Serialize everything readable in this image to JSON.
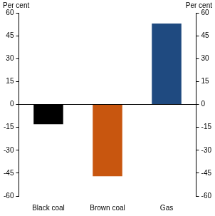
{
  "chart_data": {
    "type": "bar",
    "categories": [
      "Black coal",
      "Brown coal",
      "Gas"
    ],
    "values": [
      -13,
      -47,
      53
    ],
    "colors": [
      "#000000",
      "#c8560f",
      "#1f4a80"
    ],
    "ylim": [
      -60,
      60
    ],
    "yticks": [
      -60,
      -45,
      -30,
      -15,
      0,
      15,
      30,
      45,
      60
    ],
    "y2lim": [
      -60,
      60
    ],
    "y2ticks": [
      -60,
      -45,
      -30,
      -15,
      0,
      15,
      30,
      45,
      60
    ],
    "ylabel": "Per cent",
    "y2label": "Per cent",
    "grid": false
  }
}
